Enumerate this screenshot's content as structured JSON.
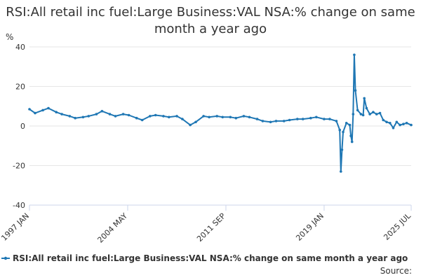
{
  "chart_data": {
    "type": "line",
    "title": "RSI:All retail inc fuel:Large Business:VAL NSA:% change on same month a year ago",
    "ylabel": "%",
    "xlabel": "",
    "ylim": [
      -40,
      40
    ],
    "yticks": [
      "40",
      "20",
      "0",
      "-20",
      "-40"
    ],
    "x_tick_labels": [
      {
        "label": "1997 JAN",
        "date": "1997-01"
      },
      {
        "label": "2004 MAY",
        "date": "2004-05"
      },
      {
        "label": "2011 SEP",
        "date": "2011-09"
      },
      {
        "label": "2019 JAN",
        "date": "2019-01"
      },
      {
        "label": "2025 JUL",
        "date": "2025-07"
      }
    ],
    "x_range": [
      "1997-01",
      "2025-07"
    ],
    "grid": "horizontal",
    "legend_position": "bottom",
    "series": [
      {
        "name": "RSI:All retail inc fuel:Large Business:VAL NSA:% change on same month a year ago",
        "color": "#1f77b4",
        "points": [
          [
            "1997-01",
            8.5
          ],
          [
            "1997-06",
            6.5
          ],
          [
            "1998-01",
            8.0
          ],
          [
            "1998-06",
            9.0
          ],
          [
            "1999-01",
            7.0
          ],
          [
            "1999-06",
            6.0
          ],
          [
            "2000-01",
            5.0
          ],
          [
            "2000-06",
            4.0
          ],
          [
            "2001-01",
            4.5
          ],
          [
            "2001-06",
            5.0
          ],
          [
            "2002-01",
            6.0
          ],
          [
            "2002-06",
            7.5
          ],
          [
            "2003-01",
            6.0
          ],
          [
            "2003-06",
            5.0
          ],
          [
            "2004-01",
            6.0
          ],
          [
            "2004-06",
            5.5
          ],
          [
            "2005-01",
            4.0
          ],
          [
            "2005-06",
            3.0
          ],
          [
            "2006-01",
            5.0
          ],
          [
            "2006-06",
            5.5
          ],
          [
            "2007-01",
            5.0
          ],
          [
            "2007-06",
            4.5
          ],
          [
            "2008-01",
            5.0
          ],
          [
            "2008-06",
            3.5
          ],
          [
            "2009-01",
            0.5
          ],
          [
            "2009-06",
            2.0
          ],
          [
            "2010-01",
            5.0
          ],
          [
            "2010-06",
            4.5
          ],
          [
            "2011-01",
            5.0
          ],
          [
            "2011-06",
            4.5
          ],
          [
            "2012-01",
            4.5
          ],
          [
            "2012-06",
            4.0
          ],
          [
            "2013-01",
            5.0
          ],
          [
            "2013-06",
            4.5
          ],
          [
            "2014-01",
            3.5
          ],
          [
            "2014-06",
            2.5
          ],
          [
            "2015-01",
            2.0
          ],
          [
            "2015-06",
            2.5
          ],
          [
            "2016-01",
            2.5
          ],
          [
            "2016-06",
            3.0
          ],
          [
            "2017-01",
            3.5
          ],
          [
            "2017-06",
            3.5
          ],
          [
            "2018-01",
            4.0
          ],
          [
            "2018-06",
            4.5
          ],
          [
            "2019-01",
            3.5
          ],
          [
            "2019-06",
            3.5
          ],
          [
            "2019-12",
            2.5
          ],
          [
            "2020-03",
            -2.0
          ],
          [
            "2020-04",
            -23.0
          ],
          [
            "2020-05",
            -12.0
          ],
          [
            "2020-06",
            -3.0
          ],
          [
            "2020-09",
            1.5
          ],
          [
            "2020-12",
            0.5
          ],
          [
            "2021-01",
            -5.0
          ],
          [
            "2021-02",
            -8.0
          ],
          [
            "2021-03",
            6.0
          ],
          [
            "2021-04",
            36.0
          ],
          [
            "2021-05",
            18.0
          ],
          [
            "2021-07",
            8.0
          ],
          [
            "2021-10",
            6.0
          ],
          [
            "2021-12",
            5.5
          ],
          [
            "2022-01",
            14.0
          ],
          [
            "2022-03",
            9.0
          ],
          [
            "2022-06",
            6.0
          ],
          [
            "2022-09",
            7.0
          ],
          [
            "2022-12",
            6.0
          ],
          [
            "2023-03",
            6.5
          ],
          [
            "2023-06",
            3.0
          ],
          [
            "2023-09",
            2.0
          ],
          [
            "2023-12",
            1.5
          ],
          [
            "2024-03",
            -1.0
          ],
          [
            "2024-06",
            2.0
          ],
          [
            "2024-09",
            0.5
          ],
          [
            "2024-12",
            1.0
          ],
          [
            "2025-03",
            1.5
          ],
          [
            "2025-07",
            0.5
          ]
        ]
      }
    ],
    "source_label": "Source:"
  }
}
